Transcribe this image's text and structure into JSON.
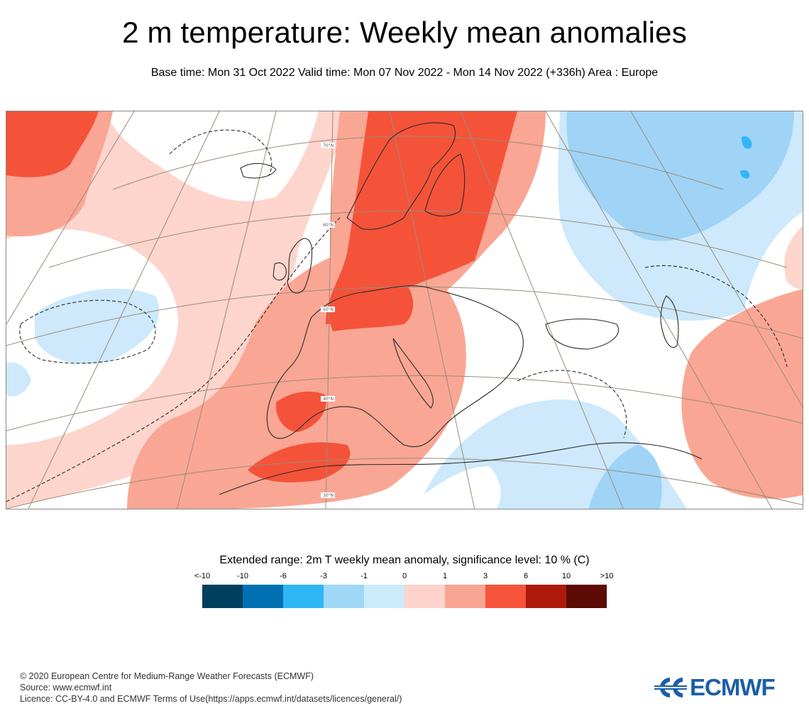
{
  "header": {
    "title": "2 m temperature: Weekly mean anomalies",
    "subtitle": "Base time: Mon 31 Oct 2022 Valid time: Mon 07 Nov 2022 - Mon 14 Nov 2022 (+336h) Area : Europe"
  },
  "map": {
    "area": "Europe",
    "lat_labels": [
      "70°N",
      "60°N",
      "50°N",
      "40°N",
      "30°N"
    ],
    "colors": {
      "warm_strong": "#f4533a",
      "warm_medium": "#faa694",
      "warm_light": "#fdd5cc",
      "cool_light": "#cde9fb",
      "cool_medium": "#9fd4f6",
      "cool_strong": "#33b5f5",
      "coast": "#2a2a2a",
      "grid": "#9a8b7a"
    }
  },
  "legend": {
    "title": "Extended range: 2m T weekly mean anomaly, significance level: 10 % (C)",
    "tick_labels": [
      "<-10",
      "-10",
      "-6",
      "-3",
      "-1",
      "0",
      "1",
      "3",
      "6",
      "10",
      ">10"
    ],
    "colors": [
      "#003f5e",
      "#0070b3",
      "#2eb6f5",
      "#9fd7f7",
      "#cbebfb",
      "#fdd3cc",
      "#faa494",
      "#f5543b",
      "#ad1a0b",
      "#5c0a05"
    ]
  },
  "footer": {
    "line1": "© 2020 European Centre for Medium-Range Weather Forecasts (ECMWF)",
    "line2": "Source: www.ecmwf.int",
    "line3": "Licence: CC-BY-4.0 and ECMWF Terms of Use(https://apps.ecmwf.int/datasets/licences/general/)"
  },
  "logo": {
    "text": "ECMWF",
    "color": "#1b5ea8"
  }
}
